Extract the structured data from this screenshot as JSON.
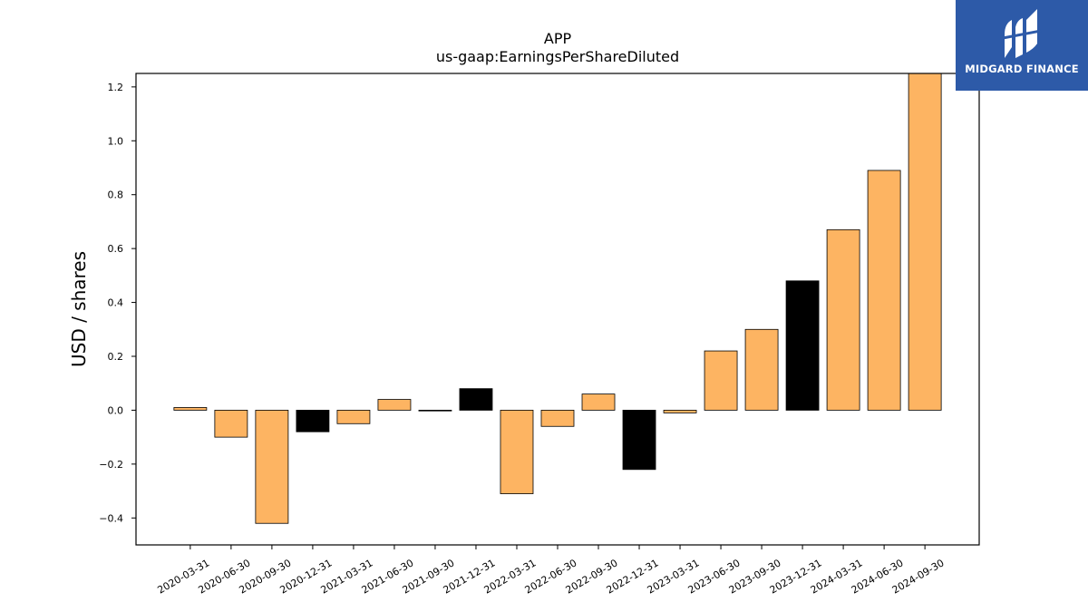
{
  "chart_data": {
    "type": "bar",
    "title": "APP",
    "subtitle": "us-gaap:EarningsPerShareDiluted",
    "xlabel": "",
    "ylabel": "USD / shares",
    "ylim": [
      -0.5,
      1.25
    ],
    "yticks": [
      -0.4,
      -0.2,
      0.0,
      0.2,
      0.4,
      0.6,
      0.8,
      1.0,
      1.2
    ],
    "ytick_labels": [
      "−0.4",
      "−0.2",
      "0.0",
      "0.2",
      "0.4",
      "0.6",
      "0.8",
      "1.0",
      "1.2"
    ],
    "categories": [
      "2020-03-31",
      "2020-06-30",
      "2020-09-30",
      "2020-12-31",
      "2021-03-31",
      "2021-06-30",
      "2021-09-30",
      "2021-12-31",
      "2022-03-31",
      "2022-06-30",
      "2022-09-30",
      "2022-12-31",
      "2023-03-31",
      "2023-06-30",
      "2023-09-30",
      "2023-12-31",
      "2024-03-31",
      "2024-06-30",
      "2024-09-30"
    ],
    "values": [
      0.01,
      -0.1,
      -0.42,
      -0.08,
      -0.05,
      0.04,
      0.0,
      0.08,
      -0.31,
      -0.06,
      0.06,
      -0.22,
      -0.01,
      0.22,
      0.3,
      0.48,
      0.67,
      0.89,
      1.26
    ],
    "bar_colors": [
      "#fdb462",
      "#fdb462",
      "#fdb462",
      "#000000",
      "#fdb462",
      "#fdb462",
      "#fdb462",
      "#000000",
      "#fdb462",
      "#fdb462",
      "#fdb462",
      "#000000",
      "#fdb462",
      "#fdb462",
      "#fdb462",
      "#000000",
      "#fdb462",
      "#fdb462",
      "#fdb462"
    ],
    "grid": false,
    "legend": "none"
  },
  "logo": {
    "text": "MIDGARD FINANCE",
    "background": "#2d5aa8"
  }
}
